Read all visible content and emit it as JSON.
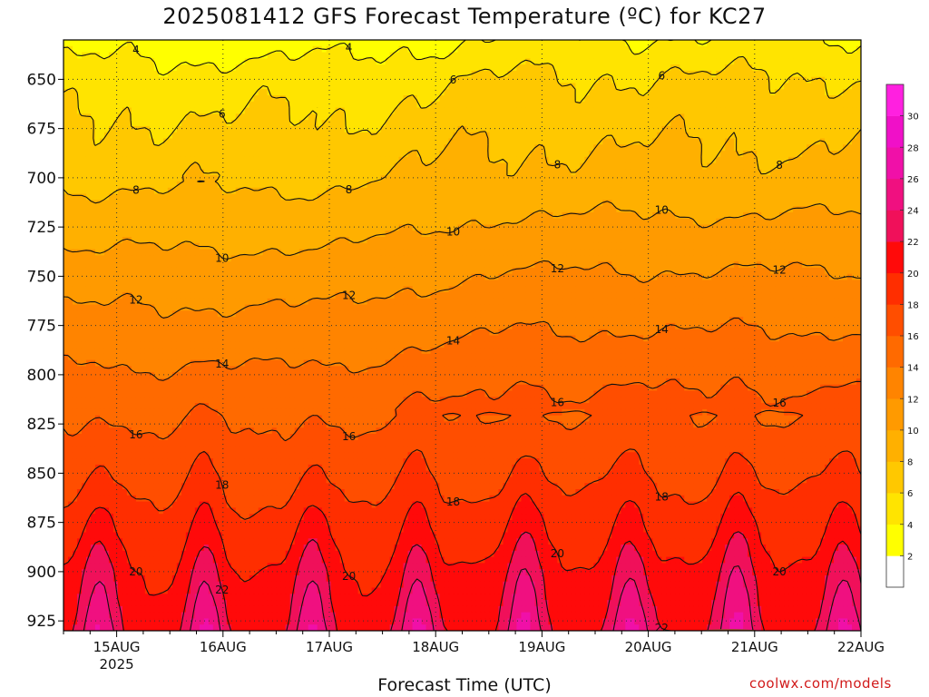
{
  "chart_data": {
    "type": "heatmap",
    "title": "2025081412 GFS Forecast Temperature (ºC) for KC27",
    "xlabel": "Forecast Time (UTC)",
    "ylabel": "",
    "y_axis": {
      "scale": "pressure",
      "reversed": true,
      "ylim": [
        930,
        630
      ],
      "ticks": [
        650,
        675,
        700,
        725,
        750,
        775,
        800,
        825,
        850,
        875,
        900,
        925
      ]
    },
    "x_axis": {
      "xlim": [
        "2025-08-14T12Z",
        "2025-08-22T00Z"
      ],
      "tick_labels": [
        "15AUG",
        "16AUG",
        "17AUG",
        "18AUG",
        "19AUG",
        "20AUG",
        "21AUG",
        "22AUG"
      ],
      "year_label": "2025"
    },
    "grid": true,
    "colorbar": {
      "placement": "right",
      "ticks": [
        2,
        4,
        6,
        8,
        10,
        12,
        14,
        16,
        18,
        20,
        22,
        24,
        26,
        28,
        30
      ],
      "colors": [
        "#ffffff",
        "#ffff00",
        "#ffe400",
        "#ffc800",
        "#ffb000",
        "#ff9a00",
        "#ff8400",
        "#ff6a00",
        "#ff4e00",
        "#ff2e00",
        "#ff0a0a",
        "#f0105a",
        "#f01080",
        "#f010a8",
        "#f010c8",
        "#ff20e0"
      ]
    },
    "contour_levels": [
      4,
      6,
      8,
      10,
      12,
      14,
      16,
      18,
      20,
      22,
      24
    ],
    "contour_base_profile": [
      {
        "p": 635,
        "t": 3.5
      },
      {
        "p": 650,
        "t": 5.0
      },
      {
        "p": 675,
        "t": 6.3
      },
      {
        "p": 700,
        "t": 7.6
      },
      {
        "p": 725,
        "t": 9.2
      },
      {
        "p": 750,
        "t": 11.0
      },
      {
        "p": 775,
        "t": 12.7
      },
      {
        "p": 800,
        "t": 14.5
      },
      {
        "p": 825,
        "t": 16.2
      },
      {
        "p": 850,
        "t": 17.6
      },
      {
        "p": 875,
        "t": 19.2
      },
      {
        "p": 900,
        "t": 20.8
      },
      {
        "p": 925,
        "t": 22.0
      }
    ],
    "diurnal_warm_peaks": [
      "15AUG",
      "16AUG",
      "17AUG",
      "18AUG",
      "19AUG",
      "20AUG",
      "21AUG"
    ],
    "surface_color": "#a0522d"
  },
  "title": "2025081412 GFS Forecast Temperature (ºC) for KC27",
  "xlabel": "Forecast Time (UTC)",
  "credit": "coolwx.com/models"
}
